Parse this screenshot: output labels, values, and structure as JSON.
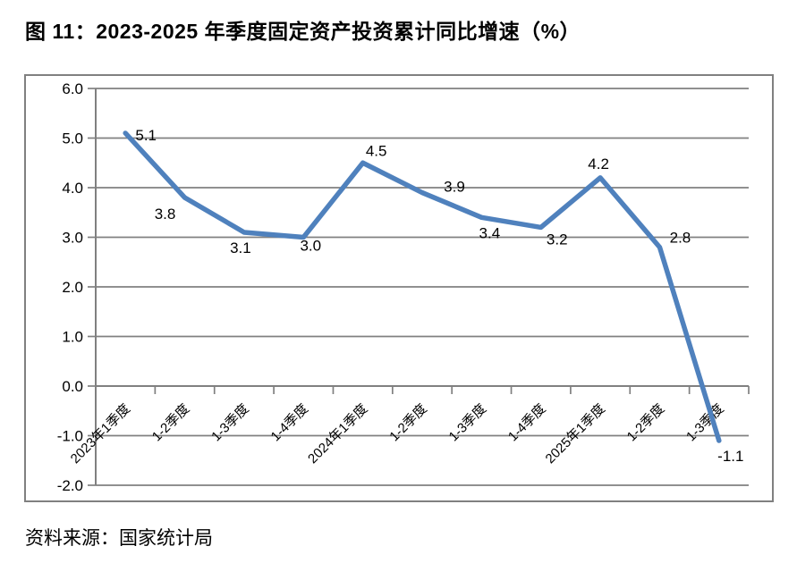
{
  "page": {
    "title": "图 11：2023-2025 年季度固定资产投资累计同比增速（%）",
    "source": "资料来源：国家统计局"
  },
  "chart_data": {
    "type": "line",
    "title": "2023-2025 年季度固定资产投资累计同比增速（%）",
    "categories": [
      "2023年1季度",
      "1-2季度",
      "1-3季度",
      "1-4季度",
      "2024年1季度",
      "1-2季度",
      "1-3季度",
      "1-4季度",
      "2025年1季度",
      "1-2季度",
      "1-3季度"
    ],
    "values": [
      5.1,
      3.8,
      3.1,
      3.0,
      4.5,
      3.9,
      3.4,
      3.2,
      4.2,
      2.8,
      -1.1
    ],
    "data_labels": [
      "5.1",
      "3.8",
      "3.1",
      "3.0",
      "4.5",
      "3.9",
      "3.4",
      "3.2",
      "4.2",
      "2.8",
      "-1.1"
    ],
    "xlabel": "",
    "ylabel": "",
    "ylim": [
      -2.0,
      6.0
    ],
    "y_tick_labels": [
      "6.0",
      "5.0",
      "4.0",
      "3.0",
      "2.0",
      "1.0",
      "0.0",
      "-1.0",
      "-2.0"
    ],
    "grid": true,
    "legend_position": "none",
    "line_color": "#4F81BD",
    "grid_color": "#808080",
    "text_color": "#000000"
  }
}
